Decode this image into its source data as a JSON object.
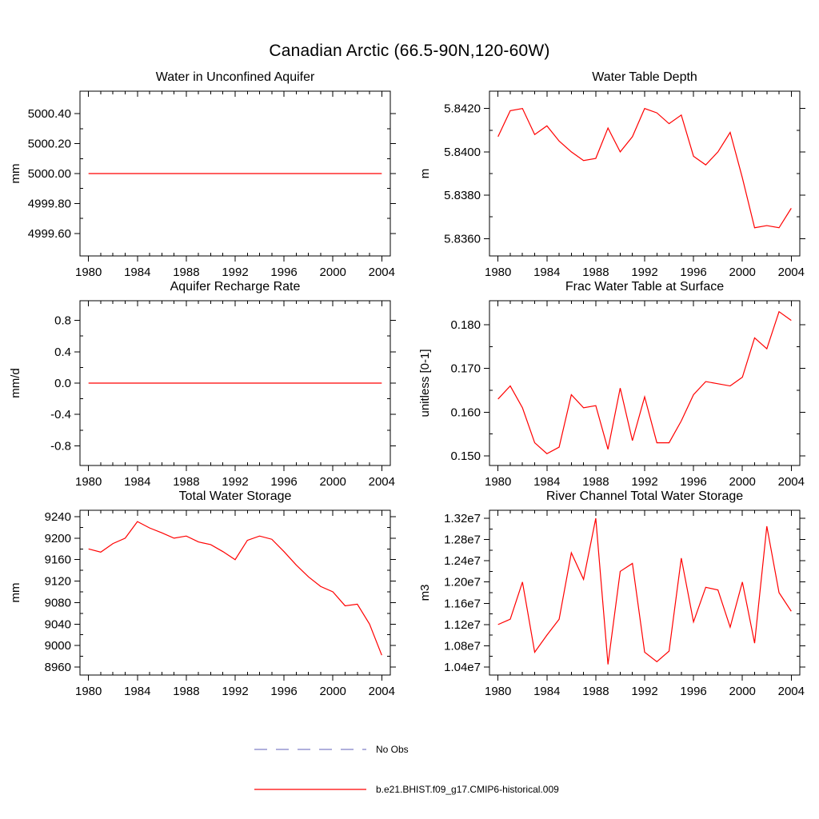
{
  "page": {
    "title": "Canadian Arctic (66.5-90N,120-60W)"
  },
  "legend": {
    "items": [
      {
        "label": "No Obs",
        "color": "#8080c8",
        "dash": true
      },
      {
        "label": "b.e21.BHIST.f09_g17.CMIP6-historical.009",
        "color": "#ff0000",
        "dash": false
      }
    ]
  },
  "chart_data": [
    {
      "type": "line",
      "title": "Water in Unconfined Aquifer",
      "ylabel": "mm",
      "color": "#ff0000",
      "xlim": [
        1979.3,
        2004.7
      ],
      "ylim": [
        4999.45,
        5000.55
      ],
      "xticks": [
        1980,
        1984,
        1988,
        1992,
        1996,
        2000,
        2004
      ],
      "yticks": [
        4999.6,
        4999.8,
        5000.0,
        5000.2,
        5000.4
      ],
      "ytick_labels": [
        "4999.60",
        "4999.80",
        "5000.00",
        "5000.20",
        "5000.40"
      ],
      "x": [
        1980,
        1981,
        1982,
        1983,
        1984,
        1985,
        1986,
        1987,
        1988,
        1989,
        1990,
        1991,
        1992,
        1993,
        1994,
        1995,
        1996,
        1997,
        1998,
        1999,
        2000,
        2001,
        2002,
        2003,
        2004
      ],
      "values": [
        5000,
        5000,
        5000,
        5000,
        5000,
        5000,
        5000,
        5000,
        5000,
        5000,
        5000,
        5000,
        5000,
        5000,
        5000,
        5000,
        5000,
        5000,
        5000,
        5000,
        5000,
        5000,
        5000,
        5000,
        5000
      ]
    },
    {
      "type": "line",
      "title": "Water Table Depth",
      "ylabel": "m",
      "color": "#ff0000",
      "xlim": [
        1979.3,
        2004.7
      ],
      "ylim": [
        5.8352,
        5.8428
      ],
      "xticks": [
        1980,
        1984,
        1988,
        1992,
        1996,
        2000,
        2004
      ],
      "yticks": [
        5.836,
        5.838,
        5.84,
        5.842
      ],
      "ytick_labels": [
        "5.8360",
        "5.8380",
        "5.8400",
        "5.8420"
      ],
      "x": [
        1980,
        1981,
        1982,
        1983,
        1984,
        1985,
        1986,
        1987,
        1988,
        1989,
        1990,
        1991,
        1992,
        1993,
        1994,
        1995,
        1996,
        1997,
        1998,
        1999,
        2000,
        2001,
        2002,
        2003,
        2004
      ],
      "values": [
        5.8407,
        5.8419,
        5.842,
        5.8408,
        5.8412,
        5.8405,
        5.84,
        5.8396,
        5.8397,
        5.8411,
        5.84,
        5.8407,
        5.842,
        5.8418,
        5.8413,
        5.8417,
        5.8398,
        5.8394,
        5.84,
        5.8409,
        5.8388,
        5.8365,
        5.8366,
        5.8365,
        5.8374
      ]
    },
    {
      "type": "line",
      "title": "Aquifer Recharge Rate",
      "ylabel": "mm/d",
      "color": "#ff0000",
      "xlim": [
        1979.3,
        2004.7
      ],
      "ylim": [
        -1.05,
        1.05
      ],
      "xticks": [
        1980,
        1984,
        1988,
        1992,
        1996,
        2000,
        2004
      ],
      "yticks": [
        -0.8,
        -0.4,
        0.0,
        0.4,
        0.8
      ],
      "ytick_labels": [
        "-0.8",
        "-0.4",
        "0.0",
        "0.4",
        "0.8"
      ],
      "x": [
        1980,
        1981,
        1982,
        1983,
        1984,
        1985,
        1986,
        1987,
        1988,
        1989,
        1990,
        1991,
        1992,
        1993,
        1994,
        1995,
        1996,
        1997,
        1998,
        1999,
        2000,
        2001,
        2002,
        2003,
        2004
      ],
      "values": [
        0,
        0,
        0,
        0,
        0,
        0,
        0,
        0,
        0,
        0,
        0,
        0,
        0,
        0,
        0,
        0,
        0,
        0,
        0,
        0,
        0,
        0,
        0,
        0,
        0
      ]
    },
    {
      "type": "line",
      "title": "Frac Water Table at Surface",
      "ylabel": "unitless [0-1]",
      "color": "#ff0000",
      "xlim": [
        1979.3,
        2004.7
      ],
      "ylim": [
        0.1478,
        0.1855
      ],
      "xticks": [
        1980,
        1984,
        1988,
        1992,
        1996,
        2000,
        2004
      ],
      "yticks": [
        0.15,
        0.16,
        0.17,
        0.18
      ],
      "ytick_labels": [
        "0.150",
        "0.160",
        "0.170",
        "0.180"
      ],
      "x": [
        1980,
        1981,
        1982,
        1983,
        1984,
        1985,
        1986,
        1987,
        1988,
        1989,
        1990,
        1991,
        1992,
        1993,
        1994,
        1995,
        1996,
        1997,
        1998,
        1999,
        2000,
        2001,
        2002,
        2003,
        2004
      ],
      "values": [
        0.163,
        0.166,
        0.161,
        0.153,
        0.1505,
        0.152,
        0.164,
        0.161,
        0.1615,
        0.1515,
        0.1655,
        0.1535,
        0.1635,
        0.153,
        0.153,
        0.158,
        0.164,
        0.167,
        0.1665,
        0.166,
        0.168,
        0.177,
        0.1745,
        0.183,
        0.181
      ]
    },
    {
      "type": "line",
      "title": "Total Water Storage",
      "ylabel": "mm",
      "color": "#ff0000",
      "xlim": [
        1979.3,
        2004.7
      ],
      "ylim": [
        8945,
        9252
      ],
      "xticks": [
        1980,
        1984,
        1988,
        1992,
        1996,
        2000,
        2004
      ],
      "yticks": [
        8960,
        9000,
        9040,
        9080,
        9120,
        9160,
        9200,
        9240
      ],
      "ytick_labels": [
        "8960",
        "9000",
        "9040",
        "9080",
        "9120",
        "9160",
        "9200",
        "9240"
      ],
      "x": [
        1980,
        1981,
        1982,
        1983,
        1984,
        1985,
        1986,
        1987,
        1988,
        1989,
        1990,
        1991,
        1992,
        1993,
        1994,
        1995,
        1996,
        1997,
        1998,
        1999,
        2000,
        2001,
        2002,
        2003,
        2004
      ],
      "values": [
        9180,
        9174,
        9190,
        9200,
        9231,
        9219,
        9210,
        9200,
        9204,
        9193,
        9188,
        9175,
        9160,
        9196,
        9204,
        9198,
        9175,
        9150,
        9128,
        9110,
        9100,
        9074,
        9077,
        9040,
        8982
      ]
    },
    {
      "type": "line",
      "title": "River Channel Total Water Storage",
      "ylabel": "m3",
      "color": "#ff0000",
      "xlim": [
        1979.3,
        2004.7
      ],
      "ylim": [
        10250000.0,
        13350000.0
      ],
      "xticks": [
        1980,
        1984,
        1988,
        1992,
        1996,
        2000,
        2004
      ],
      "yticks": [
        10400000.0,
        10800000.0,
        11200000.0,
        11600000.0,
        12000000.0,
        12400000.0,
        12800000.0,
        13200000.0
      ],
      "ytick_labels": [
        "1.04e7",
        "1.08e7",
        "1.12e7",
        "1.16e7",
        "1.20e7",
        "1.24e7",
        "1.28e7",
        "1.32e7"
      ],
      "x": [
        1980,
        1981,
        1982,
        1983,
        1984,
        1985,
        1986,
        1987,
        1988,
        1989,
        1990,
        1991,
        1992,
        1993,
        1994,
        1995,
        1996,
        1997,
        1998,
        1999,
        2000,
        2001,
        2002,
        2003,
        2004
      ],
      "values": [
        11200000.0,
        11300000.0,
        12000000.0,
        10680000.0,
        11000000.0,
        11300000.0,
        12550000.0,
        12050000.0,
        13200000.0,
        10450000.0,
        12200000.0,
        12350000.0,
        10680000.0,
        10500000.0,
        10700000.0,
        12450000.0,
        11250000.0,
        11900000.0,
        11850000.0,
        11150000.0,
        12000000.0,
        10850000.0,
        13050000.0,
        11800000.0,
        11450000.0
      ]
    }
  ]
}
